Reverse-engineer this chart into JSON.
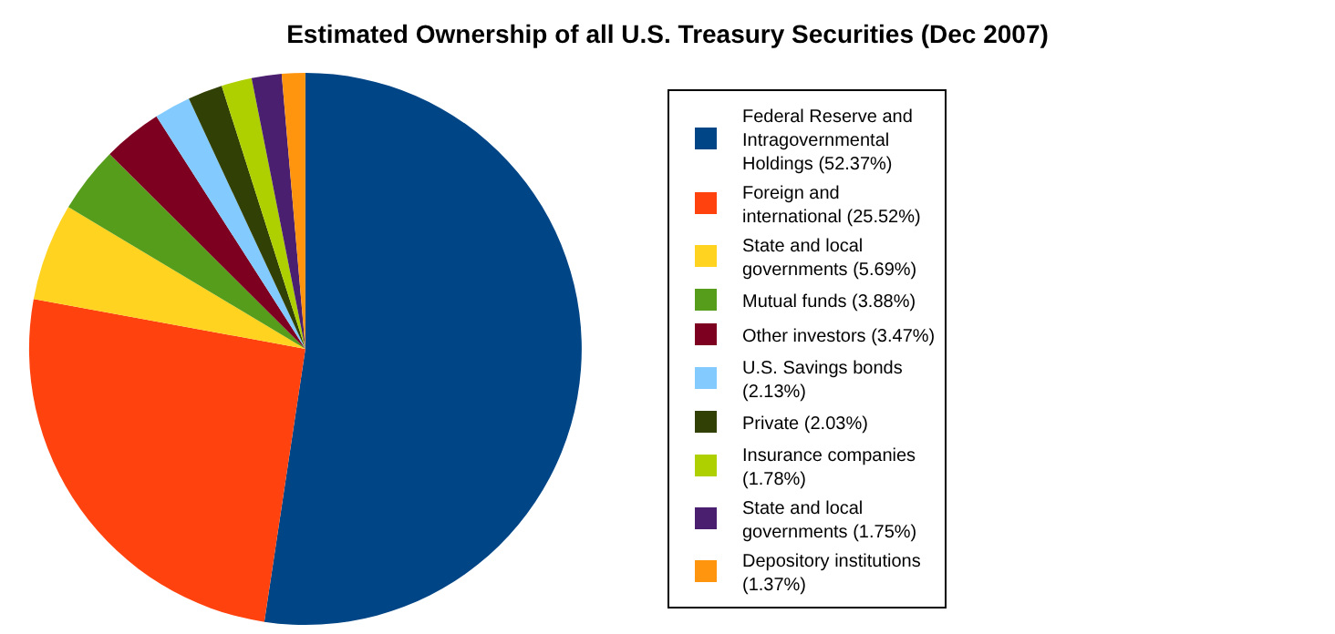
{
  "chart_data": {
    "type": "pie",
    "title": "Estimated Ownership of all U.S. Treasury Securities (Dec 2007)",
    "categories": [
      "Federal Reserve and Intragovernmental Holdings (52.37%)",
      "Foreign and international (25.52%)",
      "State and local governments (5.69%)",
      "Mutual funds (3.88%)",
      "Other investors (3.47%)",
      "U.S. Savings bonds (2.13%)",
      "Private (2.03%)",
      "Insurance companies (1.78%)",
      "State and local governments (1.75%)",
      "Depository institutions (1.37%)"
    ],
    "values": [
      52.37,
      25.52,
      5.69,
      3.88,
      3.47,
      2.13,
      2.03,
      1.78,
      1.75,
      1.37
    ],
    "colors": [
      "#004586",
      "#ff420e",
      "#ffd320",
      "#579d1c",
      "#7e0021",
      "#83caff",
      "#314004",
      "#aecf00",
      "#4b1f6f",
      "#ff950e"
    ],
    "legend": "right"
  }
}
